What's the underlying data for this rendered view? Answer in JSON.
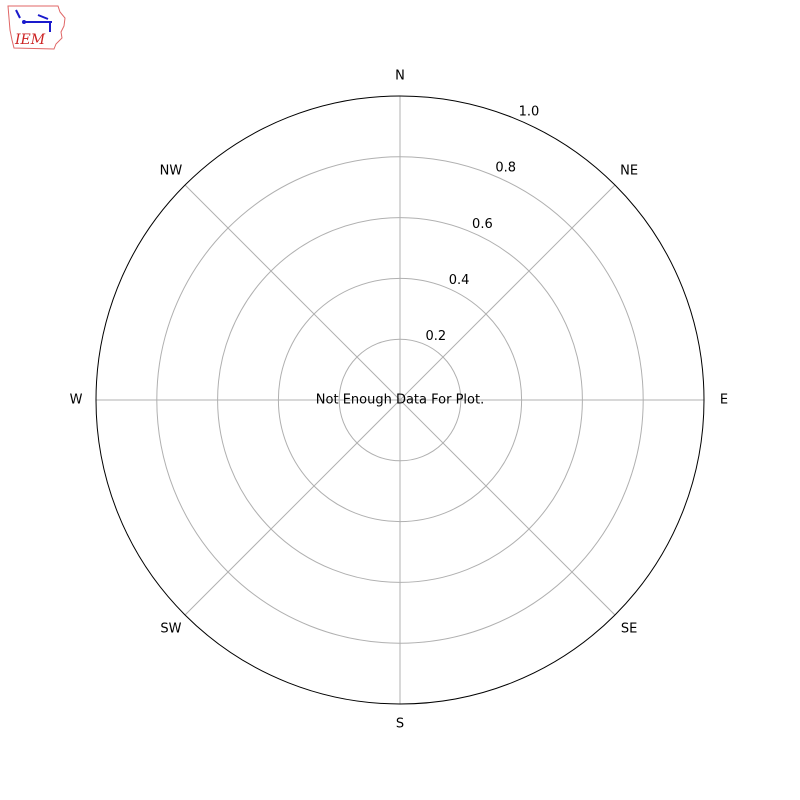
{
  "logo": {
    "text": "IEM",
    "colors": {
      "text": "#cc2222",
      "outline": "#e06666",
      "symbol": "#1a1acc"
    }
  },
  "chart_data": {
    "type": "polar",
    "title": "",
    "message": "Not Enough Data For Plot.",
    "direction_labels": [
      "N",
      "NE",
      "E",
      "SE",
      "S",
      "SW",
      "W",
      "NW"
    ],
    "radial_ticks": [
      "0.2",
      "0.4",
      "0.6",
      "0.8",
      "1.0"
    ],
    "radial_values": [
      0.2,
      0.4,
      0.6,
      0.8,
      1.0
    ],
    "rlim": [
      0,
      1.0
    ],
    "grid": true,
    "series": [],
    "colors": {
      "grid": "#b0b0b0",
      "frame": "#000000"
    }
  }
}
